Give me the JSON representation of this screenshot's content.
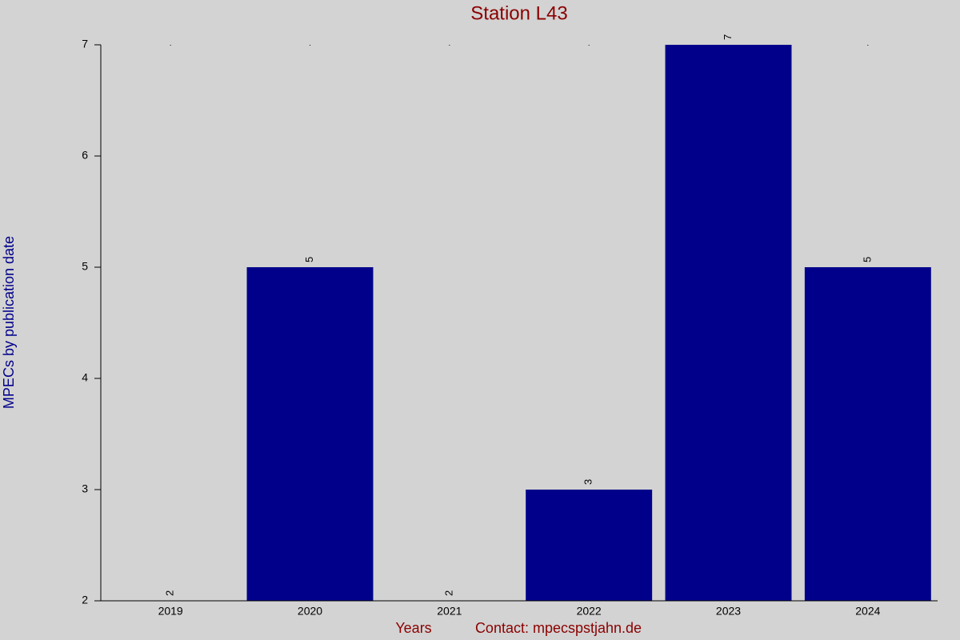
{
  "chart_data": {
    "type": "bar",
    "title": "Station L43",
    "y_label": "MPECs by publication date",
    "x_label": "Years",
    "contact": "Contact: mpecspstjahn.de",
    "categories": [
      "2019",
      "2020",
      "2021",
      "2022",
      "2023",
      "2024"
    ],
    "values": [
      2,
      5,
      2,
      3,
      7,
      5
    ],
    "color": "#00008b",
    "ylim": [
      2,
      7
    ],
    "yticks": [
      2,
      3,
      4,
      5,
      6,
      7
    ],
    "grid": false
  }
}
